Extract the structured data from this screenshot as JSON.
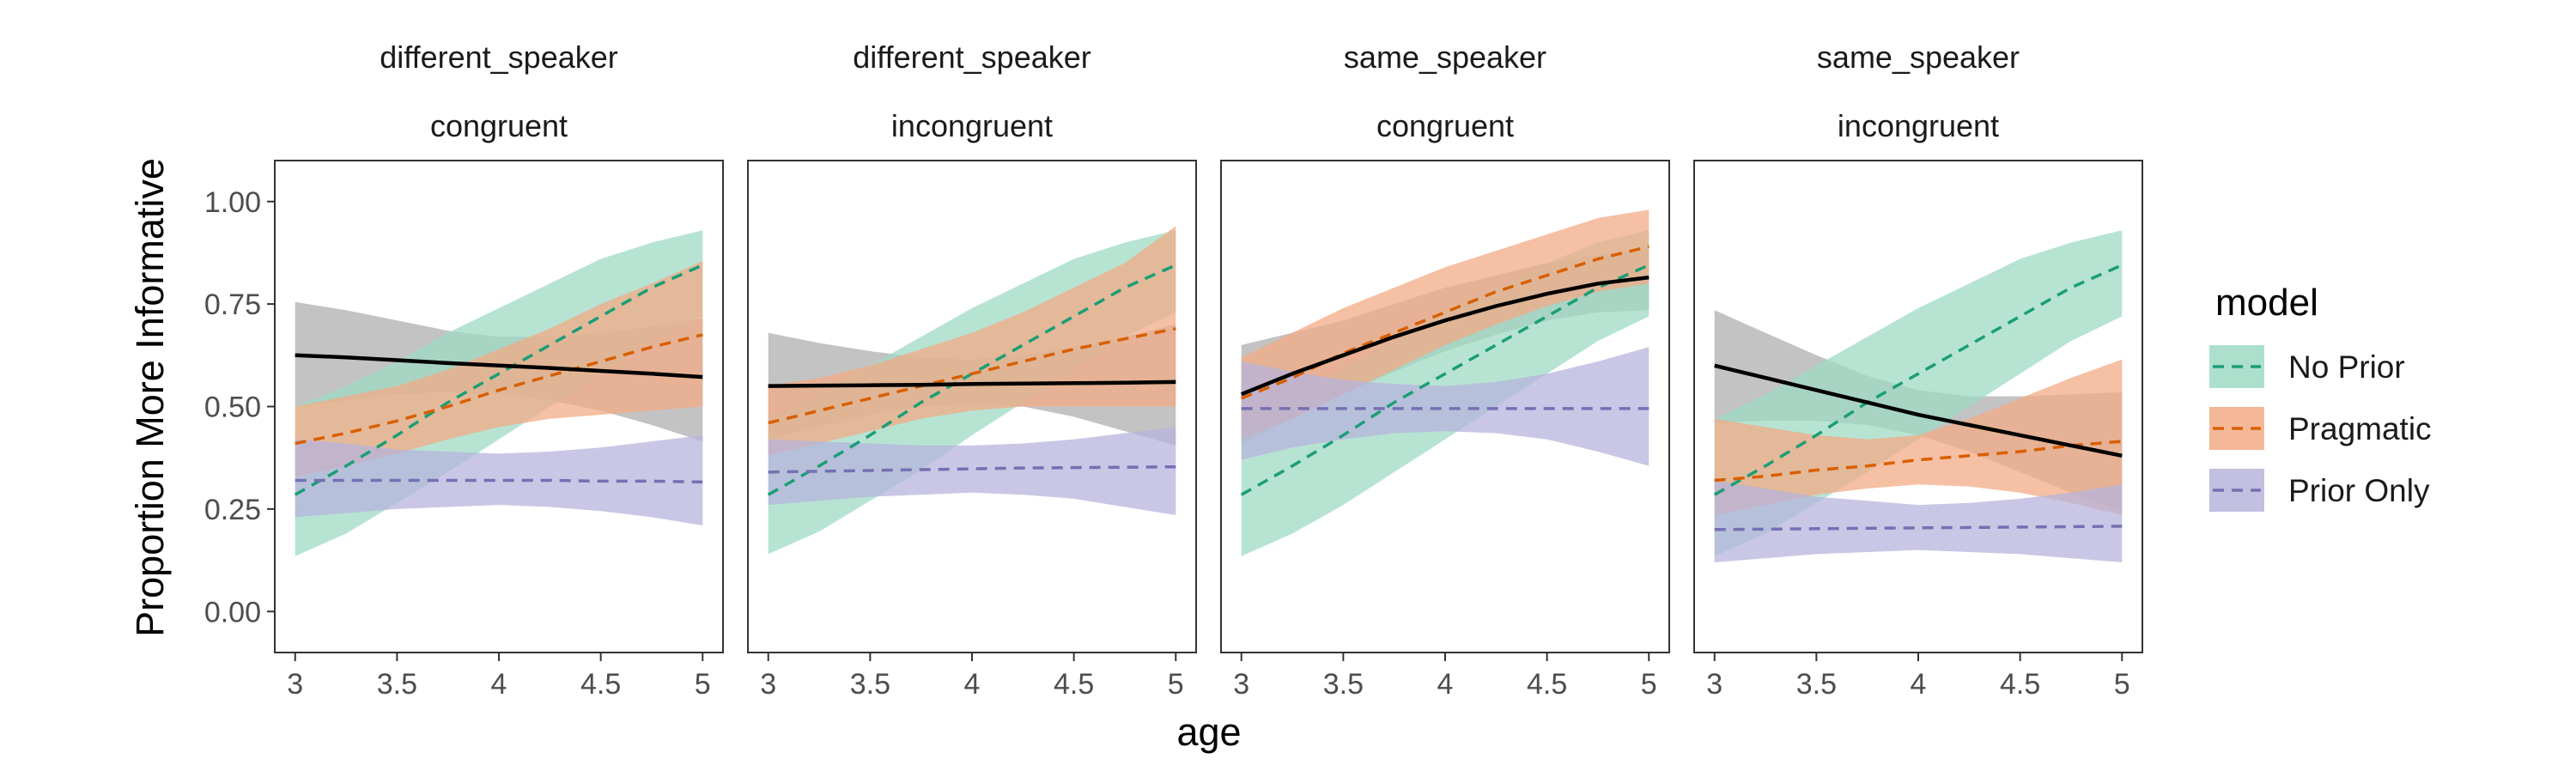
{
  "chart_data": {
    "type": "line",
    "ylabel": "Proportion More Informative",
    "xlabel": "age",
    "xlim": [
      2.9,
      5.1
    ],
    "ylim": [
      -0.1,
      1.1
    ],
    "x_ticks": [
      "3",
      "3.5",
      "4",
      "4.5",
      "5"
    ],
    "y_ticks": [
      "0.00",
      "0.25",
      "0.50",
      "0.75",
      "1.00"
    ],
    "grid": false,
    "legend_position": "right",
    "legend": {
      "title": "model",
      "entries": [
        {
          "name": "No Prior",
          "color": "#1b9e77"
        },
        {
          "name": "Pragmatic",
          "color": "#d95f02"
        },
        {
          "name": "Prior Only",
          "color": "#7570b3"
        }
      ]
    },
    "band_fill_colors": {
      "No Prior": "#9fd9c4",
      "Pragmatic": "#f2ab86",
      "Prior Only": "#b7b4dc",
      "empirical": "#b8b8b8"
    },
    "empirical_line_color": "#000000",
    "x": [
      3,
      3.25,
      3.5,
      3.75,
      4,
      4.25,
      4.5,
      4.75,
      5
    ],
    "panels": [
      {
        "title_line1": "different_speaker",
        "title_line2": "congruent",
        "empirical": {
          "mid": [
            0.625,
            0.62,
            0.613,
            0.606,
            0.6,
            0.594,
            0.587,
            0.58,
            0.572
          ],
          "lo": [
            0.5,
            0.515,
            0.53,
            0.535,
            0.53,
            0.515,
            0.49,
            0.455,
            0.415
          ],
          "hi": [
            0.755,
            0.735,
            0.71,
            0.685,
            0.67,
            0.67,
            0.68,
            0.695,
            0.715
          ]
        },
        "series": [
          {
            "name": "No Prior",
            "mid": [
              0.285,
              0.355,
              0.43,
              0.51,
              0.58,
              0.65,
              0.72,
              0.79,
              0.845
            ],
            "lo": [
              0.135,
              0.19,
              0.265,
              0.34,
              0.42,
              0.5,
              0.58,
              0.66,
              0.72
            ],
            "hi": [
              0.5,
              0.55,
              0.61,
              0.68,
              0.74,
              0.8,
              0.86,
              0.9,
              0.93
            ]
          },
          {
            "name": "Pragmatic",
            "mid": [
              0.41,
              0.435,
              0.465,
              0.5,
              0.54,
              0.575,
              0.61,
              0.645,
              0.675
            ],
            "lo": [
              0.33,
              0.355,
              0.385,
              0.42,
              0.45,
              0.47,
              0.48,
              0.49,
              0.5
            ],
            "hi": [
              0.5,
              0.525,
              0.55,
              0.59,
              0.64,
              0.69,
              0.75,
              0.8,
              0.855
            ]
          },
          {
            "name": "Prior Only",
            "mid": [
              0.32,
              0.32,
              0.32,
              0.32,
              0.32,
              0.32,
              0.318,
              0.318,
              0.316
            ],
            "lo": [
              0.23,
              0.24,
              0.25,
              0.255,
              0.26,
              0.255,
              0.245,
              0.23,
              0.21
            ],
            "hi": [
              0.42,
              0.41,
              0.395,
              0.39,
              0.385,
              0.39,
              0.4,
              0.415,
              0.43
            ]
          }
        ]
      },
      {
        "title_line1": "different_speaker",
        "title_line2": "incongruent",
        "empirical": {
          "mid": [
            0.55,
            0.551,
            0.552,
            0.553,
            0.555,
            0.556,
            0.557,
            0.558,
            0.56
          ],
          "lo": [
            0.42,
            0.45,
            0.48,
            0.5,
            0.505,
            0.5,
            0.475,
            0.44,
            0.405
          ],
          "hi": [
            0.68,
            0.655,
            0.635,
            0.62,
            0.615,
            0.625,
            0.645,
            0.67,
            0.7
          ]
        },
        "series": [
          {
            "name": "No Prior",
            "mid": [
              0.285,
              0.355,
              0.43,
              0.51,
              0.58,
              0.65,
              0.72,
              0.79,
              0.845
            ],
            "lo": [
              0.14,
              0.195,
              0.27,
              0.345,
              0.43,
              0.51,
              0.59,
              0.67,
              0.73
            ],
            "hi": [
              0.47,
              0.53,
              0.6,
              0.67,
              0.74,
              0.8,
              0.86,
              0.9,
              0.93
            ]
          },
          {
            "name": "Pragmatic",
            "mid": [
              0.46,
              0.49,
              0.52,
              0.55,
              0.58,
              0.61,
              0.64,
              0.665,
              0.69
            ],
            "lo": [
              0.38,
              0.41,
              0.44,
              0.47,
              0.49,
              0.5,
              0.5,
              0.5,
              0.5
            ],
            "hi": [
              0.55,
              0.57,
              0.6,
              0.64,
              0.68,
              0.73,
              0.79,
              0.85,
              0.94
            ]
          },
          {
            "name": "Prior Only",
            "mid": [
              0.34,
              0.342,
              0.344,
              0.346,
              0.348,
              0.35,
              0.351,
              0.352,
              0.353
            ],
            "lo": [
              0.26,
              0.27,
              0.28,
              0.285,
              0.29,
              0.285,
              0.275,
              0.255,
              0.235
            ],
            "hi": [
              0.42,
              0.415,
              0.41,
              0.405,
              0.405,
              0.41,
              0.42,
              0.435,
              0.45
            ]
          }
        ]
      },
      {
        "title_line1": "same_speaker",
        "title_line2": "congruent",
        "empirical": {
          "mid": [
            0.53,
            0.58,
            0.625,
            0.67,
            0.71,
            0.745,
            0.775,
            0.8,
            0.815
          ],
          "lo": [
            0.41,
            0.47,
            0.53,
            0.585,
            0.635,
            0.675,
            0.71,
            0.73,
            0.735
          ],
          "hi": [
            0.65,
            0.68,
            0.71,
            0.75,
            0.79,
            0.82,
            0.85,
            0.87,
            0.885
          ]
        },
        "series": [
          {
            "name": "No Prior",
            "mid": [
              0.285,
              0.355,
              0.43,
              0.51,
              0.58,
              0.65,
              0.72,
              0.79,
              0.845
            ],
            "lo": [
              0.135,
              0.19,
              0.26,
              0.34,
              0.42,
              0.5,
              0.58,
              0.66,
              0.72
            ],
            "hi": [
              0.46,
              0.52,
              0.59,
              0.66,
              0.73,
              0.79,
              0.85,
              0.9,
              0.93
            ]
          },
          {
            "name": "Pragmatic",
            "mid": [
              0.52,
              0.57,
              0.63,
              0.68,
              0.73,
              0.78,
              0.82,
              0.86,
              0.89
            ],
            "lo": [
              0.42,
              0.47,
              0.53,
              0.59,
              0.65,
              0.7,
              0.745,
              0.78,
              0.8
            ],
            "hi": [
              0.62,
              0.68,
              0.74,
              0.79,
              0.84,
              0.88,
              0.92,
              0.96,
              0.98
            ]
          },
          {
            "name": "Prior Only",
            "mid": [
              0.495,
              0.495,
              0.495,
              0.495,
              0.495,
              0.495,
              0.495,
              0.495,
              0.495
            ],
            "lo": [
              0.37,
              0.4,
              0.42,
              0.435,
              0.44,
              0.435,
              0.42,
              0.39,
              0.355
            ],
            "hi": [
              0.61,
              0.585,
              0.565,
              0.555,
              0.55,
              0.56,
              0.58,
              0.61,
              0.645
            ]
          }
        ]
      },
      {
        "title_line1": "same_speaker",
        "title_line2": "incongruent",
        "empirical": {
          "mid": [
            0.6,
            0.57,
            0.54,
            0.51,
            0.48,
            0.455,
            0.43,
            0.405,
            0.38
          ],
          "lo": [
            0.46,
            0.465,
            0.465,
            0.455,
            0.43,
            0.39,
            0.34,
            0.29,
            0.245
          ],
          "hi": [
            0.735,
            0.68,
            0.625,
            0.575,
            0.54,
            0.525,
            0.525,
            0.53,
            0.535
          ]
        },
        "series": [
          {
            "name": "No Prior",
            "mid": [
              0.285,
              0.355,
              0.43,
              0.51,
              0.58,
              0.65,
              0.72,
              0.79,
              0.845
            ],
            "lo": [
              0.135,
              0.19,
              0.265,
              0.34,
              0.42,
              0.5,
              0.58,
              0.66,
              0.72
            ],
            "hi": [
              0.47,
              0.53,
              0.6,
              0.67,
              0.74,
              0.8,
              0.86,
              0.9,
              0.93
            ]
          },
          {
            "name": "Pragmatic",
            "mid": [
              0.32,
              0.33,
              0.345,
              0.355,
              0.37,
              0.38,
              0.39,
              0.405,
              0.415
            ],
            "lo": [
              0.235,
              0.26,
              0.285,
              0.3,
              0.31,
              0.305,
              0.29,
              0.265,
              0.235
            ],
            "hi": [
              0.47,
              0.45,
              0.43,
              0.42,
              0.43,
              0.47,
              0.52,
              0.57,
              0.615
            ]
          },
          {
            "name": "Prior Only",
            "mid": [
              0.2,
              0.201,
              0.202,
              0.203,
              0.204,
              0.205,
              0.206,
              0.207,
              0.208
            ],
            "lo": [
              0.12,
              0.13,
              0.14,
              0.145,
              0.15,
              0.145,
              0.14,
              0.13,
              0.12
            ],
            "hi": [
              0.32,
              0.3,
              0.28,
              0.27,
              0.26,
              0.265,
              0.275,
              0.29,
              0.31
            ]
          }
        ]
      }
    ]
  }
}
